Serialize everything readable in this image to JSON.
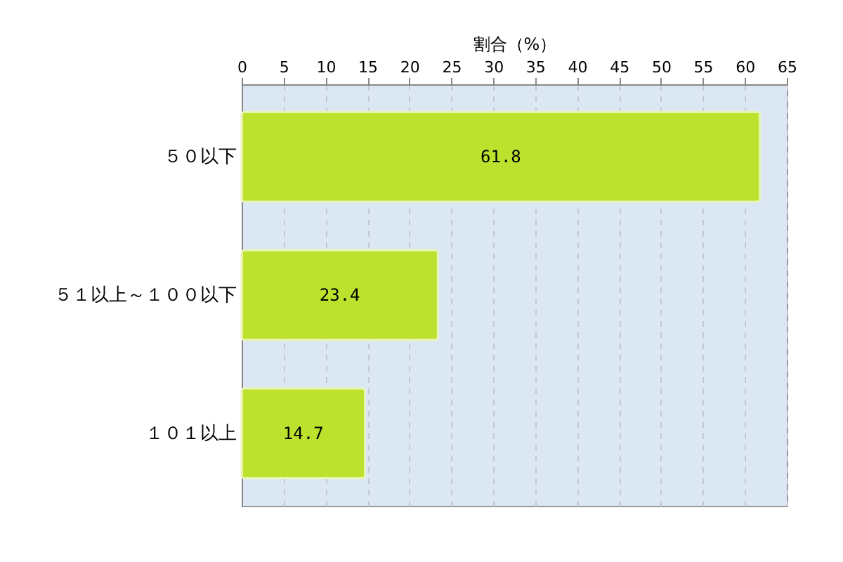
{
  "chart_data": {
    "type": "bar",
    "orientation": "horizontal",
    "xlabel": "割合（%）",
    "categories": [
      "５０以下",
      "５１以上～１００以下",
      "１０１以上"
    ],
    "values": [
      61.8,
      23.4,
      14.7
    ],
    "color": "#bce22e",
    "xlim": [
      0,
      65
    ],
    "xticks": [
      0,
      5,
      10,
      15,
      20,
      25,
      30,
      35,
      40,
      45,
      50,
      55,
      60,
      65
    ],
    "grid": "x",
    "data_labels": true
  }
}
